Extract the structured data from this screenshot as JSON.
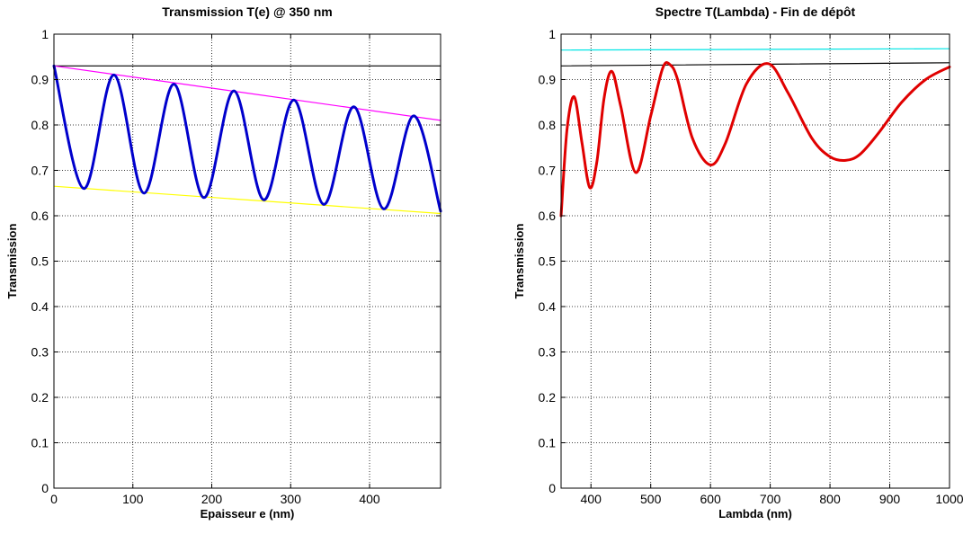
{
  "chart_data": [
    {
      "type": "line",
      "title": "Transmission T(e) @ 350 nm",
      "xlabel": "Epaisseur e (nm)",
      "ylabel": "Transmission",
      "xlim": [
        0,
        490
      ],
      "ylim": [
        0,
        1
      ],
      "x_ticks": [
        0,
        100,
        200,
        300,
        400
      ],
      "x_tick_labels": [
        "0",
        "100",
        "200",
        "300",
        "400"
      ],
      "y_ticks": [
        0,
        0.1,
        0.2,
        0.3,
        0.4,
        0.5,
        0.6,
        0.7,
        0.8,
        0.9,
        1
      ],
      "y_tick_labels": [
        "0",
        "0.1",
        "0.2",
        "0.3",
        "0.4",
        "0.5",
        "0.6",
        "0.7",
        "0.8",
        "0.9",
        "1"
      ],
      "grid": true,
      "series": [
        {
          "color": "#000000",
          "width": 1.2,
          "x": [
            0,
            490
          ],
          "y": [
            0.93,
            0.93
          ]
        },
        {
          "color": "#ff00ff",
          "width": 1.2,
          "x": [
            0,
            490
          ],
          "y": [
            0.93,
            0.81
          ]
        },
        {
          "color": "#ffff00",
          "width": 1.2,
          "x": [
            0,
            490
          ],
          "y": [
            0.665,
            0.605
          ]
        },
        {
          "color": "#0000cc",
          "width": 3,
          "x": [
            0,
            38,
            76,
            114,
            152,
            190,
            228,
            266,
            304,
            342,
            380,
            418,
            456,
            490
          ],
          "y": [
            0.93,
            0.66,
            0.91,
            0.65,
            0.89,
            0.64,
            0.875,
            0.635,
            0.855,
            0.625,
            0.84,
            0.615,
            0.82,
            0.61
          ]
        }
      ]
    },
    {
      "type": "line",
      "title": "Spectre T(Lambda) - Fin de dépôt",
      "xlabel": "Lambda (nm)",
      "ylabel": "Transmission",
      "xlim": [
        350,
        1000
      ],
      "ylim": [
        0,
        1
      ],
      "x_ticks": [
        400,
        500,
        600,
        700,
        800,
        900,
        1000
      ],
      "x_tick_labels": [
        "400",
        "500",
        "600",
        "700",
        "800",
        "900",
        "1000"
      ],
      "y_ticks": [
        0,
        0.1,
        0.2,
        0.3,
        0.4,
        0.5,
        0.6,
        0.7,
        0.8,
        0.9,
        1
      ],
      "y_tick_labels": [
        "0",
        "0.1",
        "0.2",
        "0.3",
        "0.4",
        "0.5",
        "0.6",
        "0.7",
        "0.8",
        "0.9",
        "1"
      ],
      "grid": true,
      "series": [
        {
          "color": "#00e5e5",
          "width": 1.2,
          "x": [
            350,
            1000
          ],
          "y": [
            0.965,
            0.968
          ]
        },
        {
          "color": "#000000",
          "width": 1.2,
          "x": [
            350,
            1000
          ],
          "y": [
            0.93,
            0.937
          ]
        },
        {
          "color": "#e00000",
          "width": 3,
          "x": [
            350,
            360,
            372,
            385,
            398,
            410,
            422,
            435,
            450,
            475,
            500,
            520,
            532,
            545,
            570,
            600,
            625,
            660,
            697,
            730,
            770,
            800,
            826,
            850,
            880,
            920,
            960,
            1000
          ],
          "y": [
            0.6,
            0.79,
            0.862,
            0.76,
            0.662,
            0.72,
            0.86,
            0.918,
            0.84,
            0.695,
            0.82,
            0.925,
            0.933,
            0.9,
            0.77,
            0.712,
            0.76,
            0.89,
            0.935,
            0.87,
            0.77,
            0.73,
            0.722,
            0.735,
            0.78,
            0.85,
            0.9,
            0.928
          ]
        }
      ]
    }
  ]
}
